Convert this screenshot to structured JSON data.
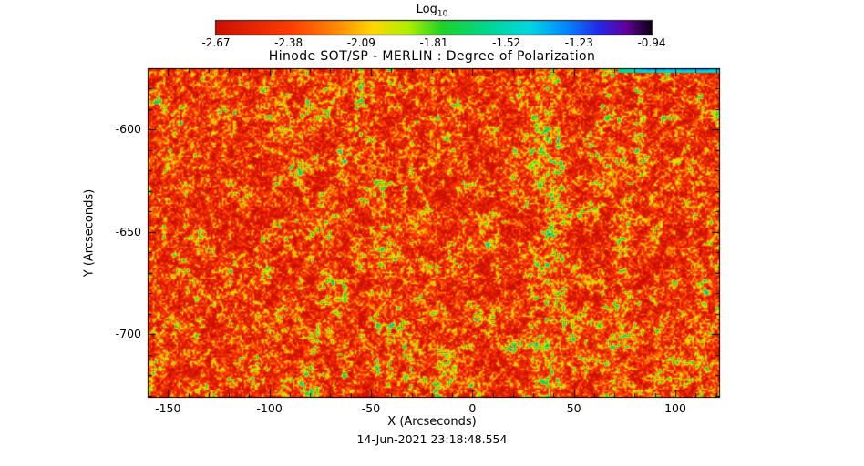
{
  "figure": {
    "title": "Hinode SOT/SP - MERLIN : Degree of Polarization",
    "timestamp": "14-Jun-2021 23:18:48.554",
    "colorbar": {
      "label_main": "Log",
      "label_sub": "10",
      "tick_labels": [
        "-2.67",
        "-2.38",
        "-2.09",
        "-1.81",
        "-1.52",
        "-1.23",
        "-0.94"
      ]
    },
    "x_axis": {
      "label": "X (Arcseconds)",
      "tick_labels": [
        "-150",
        "-100",
        "-50",
        "0",
        "50",
        "100"
      ]
    },
    "y_axis": {
      "label": "Y (Arcseconds)",
      "tick_labels": [
        "-600",
        "-650",
        "-700"
      ]
    }
  },
  "chart_data": {
    "type": "heatmap",
    "title": "Hinode SOT/SP - MERLIN : Degree of Polarization",
    "xlabel": "X (Arcseconds)",
    "ylabel": "Y (Arcseconds)",
    "xlim": [
      -160,
      122
    ],
    "ylim": [
      -731,
      -570
    ],
    "x_ticks": [
      -150,
      -100,
      -50,
      0,
      50,
      100
    ],
    "x_minor_tick_step": 10,
    "y_ticks": [
      -600,
      -650,
      -700
    ],
    "y_minor_tick_step": 10,
    "grid": false,
    "colorbar": {
      "label": "Log10",
      "position": "top",
      "range": [
        -2.67,
        -0.94
      ],
      "ticks": [
        -2.67,
        -2.38,
        -2.09,
        -1.81,
        -1.52,
        -1.23,
        -0.94
      ],
      "colormap": "rainbow: red -> orange -> yellow -> green -> cyan -> blue -> purple -> black"
    },
    "value_description": "Log10 of degree of polarization over the solar field of view. Background dominated by low polarization (~ -2.5 to -2.3, red/orange speckled granulation-like texture) with scattered small magnetic features at higher polarization (~ -2.0 to -1.5, yellow/green/cyan speckles and chains), a faint brighter vertical stripe near x = +37 arcsec, and a cyan/blue artifact streak along the very top edge between roughly x = +95 and x = +122 arcsec.",
    "dominant_value_log10": -2.5,
    "feature_values_log10": [
      -2.0,
      -1.5
    ],
    "annotation": "14-Jun-2021 23:18:48.554"
  }
}
